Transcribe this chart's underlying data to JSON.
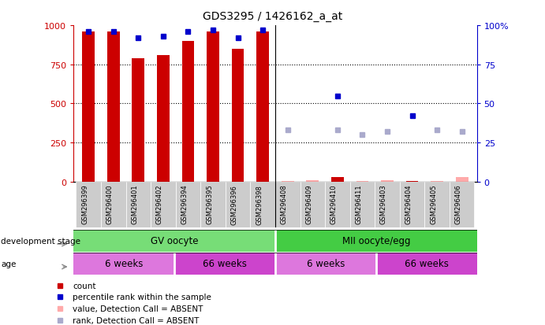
{
  "title": "GDS3295 / 1426162_a_at",
  "samples": [
    "GSM296399",
    "GSM296400",
    "GSM296401",
    "GSM296402",
    "GSM296394",
    "GSM296395",
    "GSM296396",
    "GSM296398",
    "GSM296408",
    "GSM296409",
    "GSM296410",
    "GSM296411",
    "GSM296403",
    "GSM296404",
    "GSM296405",
    "GSM296406"
  ],
  "counts": [
    960,
    960,
    790,
    810,
    900,
    960,
    850,
    960,
    5,
    8,
    30,
    5,
    8,
    5,
    5,
    30
  ],
  "percentile_ranks": [
    96,
    96,
    92,
    93,
    96,
    97,
    92,
    97,
    null,
    null,
    55,
    null,
    null,
    42,
    null,
    null
  ],
  "absent_values": [
    null,
    null,
    null,
    null,
    null,
    null,
    null,
    null,
    5,
    8,
    null,
    5,
    8,
    null,
    5,
    30
  ],
  "absent_ranks": [
    null,
    null,
    null,
    null,
    null,
    null,
    null,
    null,
    33,
    null,
    33,
    30,
    32,
    null,
    33,
    32
  ],
  "count_color": "#cc0000",
  "rank_color": "#0000cc",
  "absent_value_color": "#ffaaaa",
  "absent_rank_color": "#aaaacc",
  "ylim_left": [
    0,
    1000
  ],
  "ylim_right": [
    0,
    100
  ],
  "yticks_left": [
    0,
    250,
    500,
    750,
    1000
  ],
  "yticks_right": [
    0,
    25,
    50,
    75,
    100
  ],
  "ytick_labels_left": [
    "0",
    "250",
    "500",
    "750",
    "1000"
  ],
  "ytick_labels_right": [
    "0",
    "25",
    "50",
    "75",
    "100%"
  ],
  "legend_items": [
    {
      "label": "count",
      "color": "#cc0000"
    },
    {
      "label": "percentile rank within the sample",
      "color": "#0000cc"
    },
    {
      "label": "value, Detection Call = ABSENT",
      "color": "#ffaaaa"
    },
    {
      "label": "rank, Detection Call = ABSENT",
      "color": "#aaaacc"
    }
  ],
  "gv_color": "#77dd77",
  "mii_color": "#44cc44",
  "age_6w_color": "#dd77dd",
  "age_66w_color": "#cc44cc",
  "background_color": "#ffffff",
  "plot_bg_color": "#ffffff",
  "xticklabel_bg": "#cccccc"
}
